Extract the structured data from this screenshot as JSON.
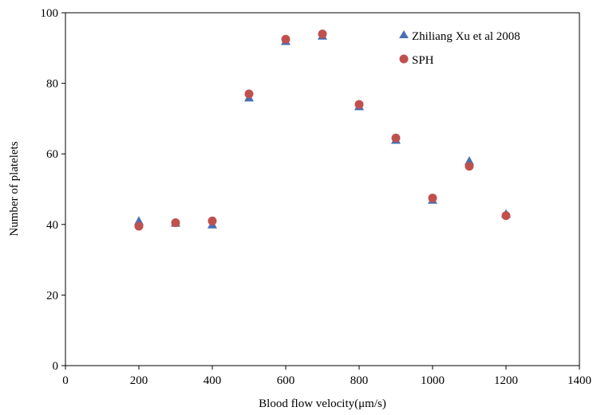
{
  "chart_data": {
    "type": "scatter",
    "title": "",
    "xlabel": "Blood flow velocity(μm/s)",
    "ylabel": "Number of platelets",
    "xlim": [
      0,
      1400
    ],
    "ylim": [
      0,
      100
    ],
    "xticks": [
      0,
      200,
      400,
      600,
      800,
      1000,
      1200,
      1400
    ],
    "yticks": [
      0,
      20,
      40,
      60,
      80,
      100
    ],
    "grid": false,
    "legend": "top-right",
    "series": [
      {
        "name": "Zhiliang Xu et al 2008",
        "marker": "triangle",
        "color": "#4a6fb5",
        "x": [
          200,
          300,
          400,
          500,
          600,
          700,
          800,
          900,
          1000,
          1100,
          1200
        ],
        "y": [
          41,
          40.5,
          40,
          76,
          92,
          93.5,
          73.5,
          64,
          47,
          58,
          43
        ]
      },
      {
        "name": "SPH",
        "marker": "circle",
        "color": "#c0504d",
        "x": [
          200,
          300,
          400,
          500,
          600,
          700,
          800,
          900,
          1000,
          1100,
          1200
        ],
        "y": [
          39.5,
          40.5,
          41,
          77,
          92.5,
          94,
          74,
          64.5,
          47.5,
          56.5,
          42.5
        ]
      }
    ]
  }
}
